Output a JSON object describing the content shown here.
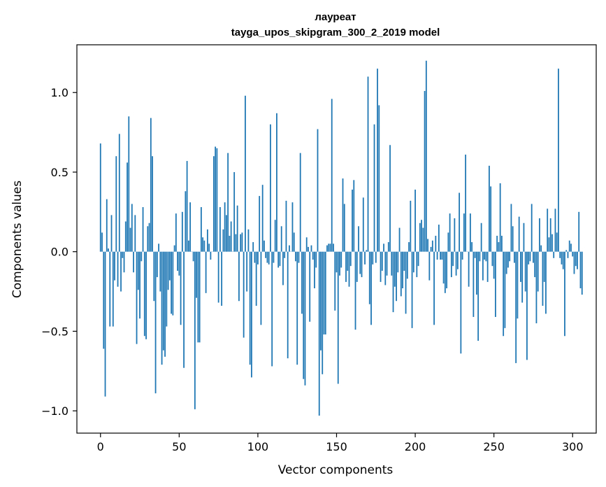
{
  "chart_data": {
    "type": "bar",
    "title": "лауреат",
    "subtitle": "tayga_upos_skipgram_300_2_2019 model",
    "xlabel": "Vector components",
    "ylabel": "Components values",
    "xlim": [
      -15,
      315
    ],
    "ylim": [
      -1.14,
      1.3
    ],
    "xticks": [
      0,
      50,
      100,
      150,
      200,
      250,
      300
    ],
    "xtick_labels": [
      "0",
      "50",
      "100",
      "150",
      "200",
      "250",
      "300"
    ],
    "yticks": [
      -1.0,
      -0.5,
      0.0,
      0.5,
      1.0
    ],
    "ytick_labels": [
      "−1.0",
      "−0.5",
      "0.0",
      "0.5",
      "1.0"
    ],
    "bar_color": "#1f77b4",
    "grid": false,
    "values": [
      0.68,
      0.12,
      -0.61,
      -0.91,
      0.33,
      0.02,
      -0.47,
      0.23,
      -0.47,
      -0.18,
      0.6,
      -0.22,
      0.74,
      -0.25,
      -0.04,
      -0.13,
      0.19,
      0.56,
      0.85,
      0.15,
      0.3,
      -0.13,
      0.23,
      -0.58,
      -0.24,
      -0.42,
      -0.06,
      0.28,
      -0.53,
      -0.55,
      0.16,
      0.18,
      0.84,
      0.6,
      -0.31,
      -0.89,
      -0.16,
      0.05,
      -0.25,
      -0.71,
      -0.62,
      -0.66,
      -0.47,
      -0.24,
      -0.18,
      -0.39,
      -0.4,
      0.04,
      0.24,
      -0.12,
      -0.15,
      -0.46,
      0.25,
      -0.73,
      0.38,
      0.57,
      0.07,
      0.31,
      0.0,
      -0.06,
      -0.99,
      -0.29,
      -0.57,
      -0.57,
      0.28,
      0.09,
      0.07,
      -0.26,
      0.14,
      0.05,
      -0.05,
      0.0,
      0.6,
      0.66,
      0.65,
      -0.32,
      0.28,
      -0.34,
      0.14,
      0.31,
      0.23,
      0.62,
      0.1,
      0.19,
      0.0,
      0.5,
      0.11,
      0.29,
      -0.31,
      0.11,
      0.12,
      -0.54,
      0.98,
      -0.25,
      0.14,
      -0.71,
      -0.79,
      0.06,
      -0.07,
      -0.34,
      -0.08,
      0.35,
      -0.46,
      0.42,
      0.07,
      -0.04,
      -0.07,
      -0.08,
      0.8,
      -0.72,
      -0.07,
      0.2,
      0.87,
      -0.1,
      -0.09,
      0.16,
      -0.21,
      -0.04,
      0.32,
      -0.67,
      0.04,
      0.0,
      0.31,
      0.12,
      -0.06,
      -0.71,
      -0.07,
      0.62,
      -0.39,
      -0.8,
      -0.84,
      0.09,
      0.03,
      -0.44,
      0.04,
      -0.05,
      -0.23,
      -0.1,
      0.77,
      -1.03,
      -0.62,
      -0.77,
      -0.52,
      -0.52,
      0.04,
      0.05,
      0.05,
      0.96,
      0.05,
      -0.37,
      -0.13,
      -0.83,
      -0.15,
      -0.1,
      0.46,
      0.3,
      -0.19,
      -0.12,
      -0.22,
      -0.09,
      0.39,
      0.45,
      -0.49,
      -0.19,
      0.16,
      -0.14,
      -0.16,
      0.34,
      -0.08,
      0.01,
      1.1,
      -0.33,
      -0.46,
      -0.08,
      0.8,
      -0.07,
      1.15,
      0.92,
      -0.19,
      -0.12,
      0.05,
      -0.21,
      -0.15,
      0.06,
      0.67,
      -0.15,
      -0.38,
      -0.22,
      -0.31,
      -0.13,
      0.15,
      -0.28,
      -0.23,
      -0.12,
      -0.39,
      -0.17,
      0.06,
      0.32,
      -0.48,
      -0.13,
      0.39,
      -0.16,
      -0.09,
      0.18,
      0.2,
      0.15,
      1.01,
      1.2,
      0.08,
      -0.18,
      0.03,
      0.07,
      -0.46,
      0.1,
      -0.05,
      0.17,
      -0.05,
      -0.05,
      -0.2,
      -0.26,
      -0.23,
      0.12,
      0.24,
      -0.16,
      -0.09,
      0.21,
      -0.15,
      -0.11,
      0.37,
      -0.64,
      -0.05,
      0.24,
      0.61,
      0.0,
      -0.22,
      0.24,
      0.06,
      -0.41,
      -0.04,
      -0.27,
      -0.56,
      -0.06,
      0.18,
      -0.18,
      -0.05,
      -0.06,
      -0.19,
      0.54,
      0.41,
      -0.09,
      -0.17,
      -0.41,
      0.1,
      0.06,
      0.43,
      0.1,
      -0.53,
      -0.48,
      -0.14,
      -0.1,
      -0.06,
      0.3,
      0.16,
      -0.07,
      -0.7,
      -0.42,
      0.22,
      -0.19,
      -0.32,
      0.18,
      -0.25,
      -0.68,
      -0.08,
      -0.06,
      0.3,
      -0.07,
      -0.16,
      -0.45,
      -0.25,
      0.21,
      0.04,
      -0.34,
      -0.19,
      -0.39,
      0.27,
      0.09,
      0.21,
      0.11,
      -0.04,
      0.27,
      0.12,
      1.15,
      -0.04,
      -0.08,
      -0.11,
      -0.53,
      0.01,
      -0.04,
      0.07,
      0.05,
      -0.03,
      -0.14,
      -0.09,
      -0.11,
      0.25,
      -0.23,
      -0.27
    ]
  }
}
